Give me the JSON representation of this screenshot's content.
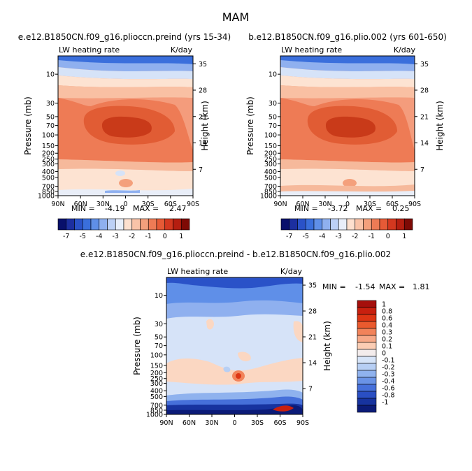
{
  "figure_title": "MAM",
  "chart_data": [
    {
      "type": "heatmap",
      "title": "e.e12.B1850CN.f09_g16.plioccn.preind (yrs 15-34)",
      "left_label": "LW heating rate",
      "right_label": "K/day",
      "xlabel": "",
      "ylabel": "Pressure (mb)",
      "y2label": "Height (km)",
      "x_ticks": [
        "90N",
        "60N",
        "30N",
        "0",
        "30S",
        "60S",
        "90S"
      ],
      "y_ticks": [
        "10",
        "30",
        "50",
        "70",
        "100",
        "150",
        "200",
        "250",
        "300",
        "400",
        "500",
        "700",
        "850",
        "1000"
      ],
      "y2_ticks": [
        "35",
        "28",
        "21",
        "14",
        "7"
      ],
      "min_label": "MIN =",
      "min_value": "-4.19",
      "max_label": "MAX =",
      "max_value": "2.47",
      "colorbar_labels": [
        "-7",
        "-5",
        "-4",
        "-3",
        "-2",
        "-1",
        "0",
        "1"
      ],
      "colorbar_colors": [
        "#08106b",
        "#1c2fa0",
        "#2a52c8",
        "#3a6fdc",
        "#5f8fe8",
        "#8fb0ef",
        "#bcd0f6",
        "#e8eefa",
        "#fde0cf",
        "#f9c3a8",
        "#f4a07c",
        "#ee7b55",
        "#e65a36",
        "#d4381f",
        "#b51e10",
        "#7e0a05"
      ],
      "contours": [
        {
          "level": -4,
          "color": "#3a6fdc"
        },
        {
          "level": -3,
          "color": "#8fb0ef"
        },
        {
          "level": -2,
          "color": "#d2dff8"
        },
        {
          "level": -1.5,
          "color": "#fde0cf"
        },
        {
          "level": -1,
          "color": "#f6b99b"
        },
        {
          "level": -0.5,
          "color": "#f29a7a"
        },
        {
          "level": 0,
          "color": "#ee7f5e"
        },
        {
          "level": 0.5,
          "color": "#e9754f"
        },
        {
          "level": 1,
          "color": "#e15c34"
        },
        {
          "level": 2,
          "color": "#c93a19"
        }
      ]
    },
    {
      "type": "heatmap",
      "title": "b.e12.B1850CN.f09_g16.plio.002 (yrs 601-650)",
      "left_label": "LW heating rate",
      "right_label": "K/day",
      "xlabel": "",
      "ylabel": "Pressure (mb)",
      "y2label": "Height (km)",
      "x_ticks": [
        "90N",
        "60N",
        "30N",
        "0",
        "30S",
        "60S",
        "90S"
      ],
      "y_ticks": [
        "10",
        "30",
        "50",
        "70",
        "100",
        "150",
        "200",
        "250",
        "300",
        "400",
        "500",
        "700",
        "850",
        "1000"
      ],
      "y2_ticks": [
        "35",
        "28",
        "21",
        "14",
        "7"
      ],
      "min_label": "MIN =",
      "min_value": "-3.72",
      "max_label": "MAX =",
      "max_value": "0.25",
      "colorbar_labels": [
        "-7",
        "-5",
        "-4",
        "-3",
        "-2",
        "-1",
        "0",
        "1"
      ],
      "colorbar_colors": [
        "#08106b",
        "#1c2fa0",
        "#2a52c8",
        "#3a6fdc",
        "#5f8fe8",
        "#8fb0ef",
        "#bcd0f6",
        "#e8eefa",
        "#fde0cf",
        "#f9c3a8",
        "#f4a07c",
        "#ee7b55",
        "#e65a36",
        "#d4381f",
        "#b51e10",
        "#7e0a05"
      ]
    },
    {
      "type": "heatmap",
      "title": "e.e12.B1850CN.f09_g16.plioccn.preind - b.e12.B1850CN.f09_g16.plio.002",
      "left_label": "LW heating rate",
      "right_label": "K/day",
      "xlabel": "",
      "ylabel": "Pressure (mb)",
      "y2label": "Height (km)",
      "x_ticks": [
        "90N",
        "60N",
        "30N",
        "0",
        "30S",
        "60S",
        "90S"
      ],
      "y_ticks": [
        "10",
        "30",
        "50",
        "70",
        "100",
        "150",
        "200",
        "250",
        "300",
        "400",
        "500",
        "700",
        "850",
        "1000"
      ],
      "y2_ticks": [
        "35",
        "28",
        "21",
        "14",
        "7"
      ],
      "min_label": "MIN =",
      "min_value": "-1.54",
      "max_label": "MAX =",
      "max_value": "1.81",
      "colorbar_labels": [
        "1",
        "0.8",
        "0.6",
        "0.4",
        "0.3",
        "0.2",
        "0.1",
        "0",
        "-0.1",
        "-0.2",
        "-0.3",
        "-0.4",
        "-0.6",
        "-0.8",
        "-1"
      ],
      "colorbar_colors": [
        "#a50f0c",
        "#c8200f",
        "#dd3514",
        "#ea5a2e",
        "#f2835a",
        "#f7a988",
        "#fbcdb4",
        "#f3ecec",
        "#d6e4f8",
        "#b7cff4",
        "#8fb2ee",
        "#6a93e6",
        "#4670da",
        "#2a4fc3",
        "#17339f",
        "#0b1b78"
      ]
    }
  ]
}
